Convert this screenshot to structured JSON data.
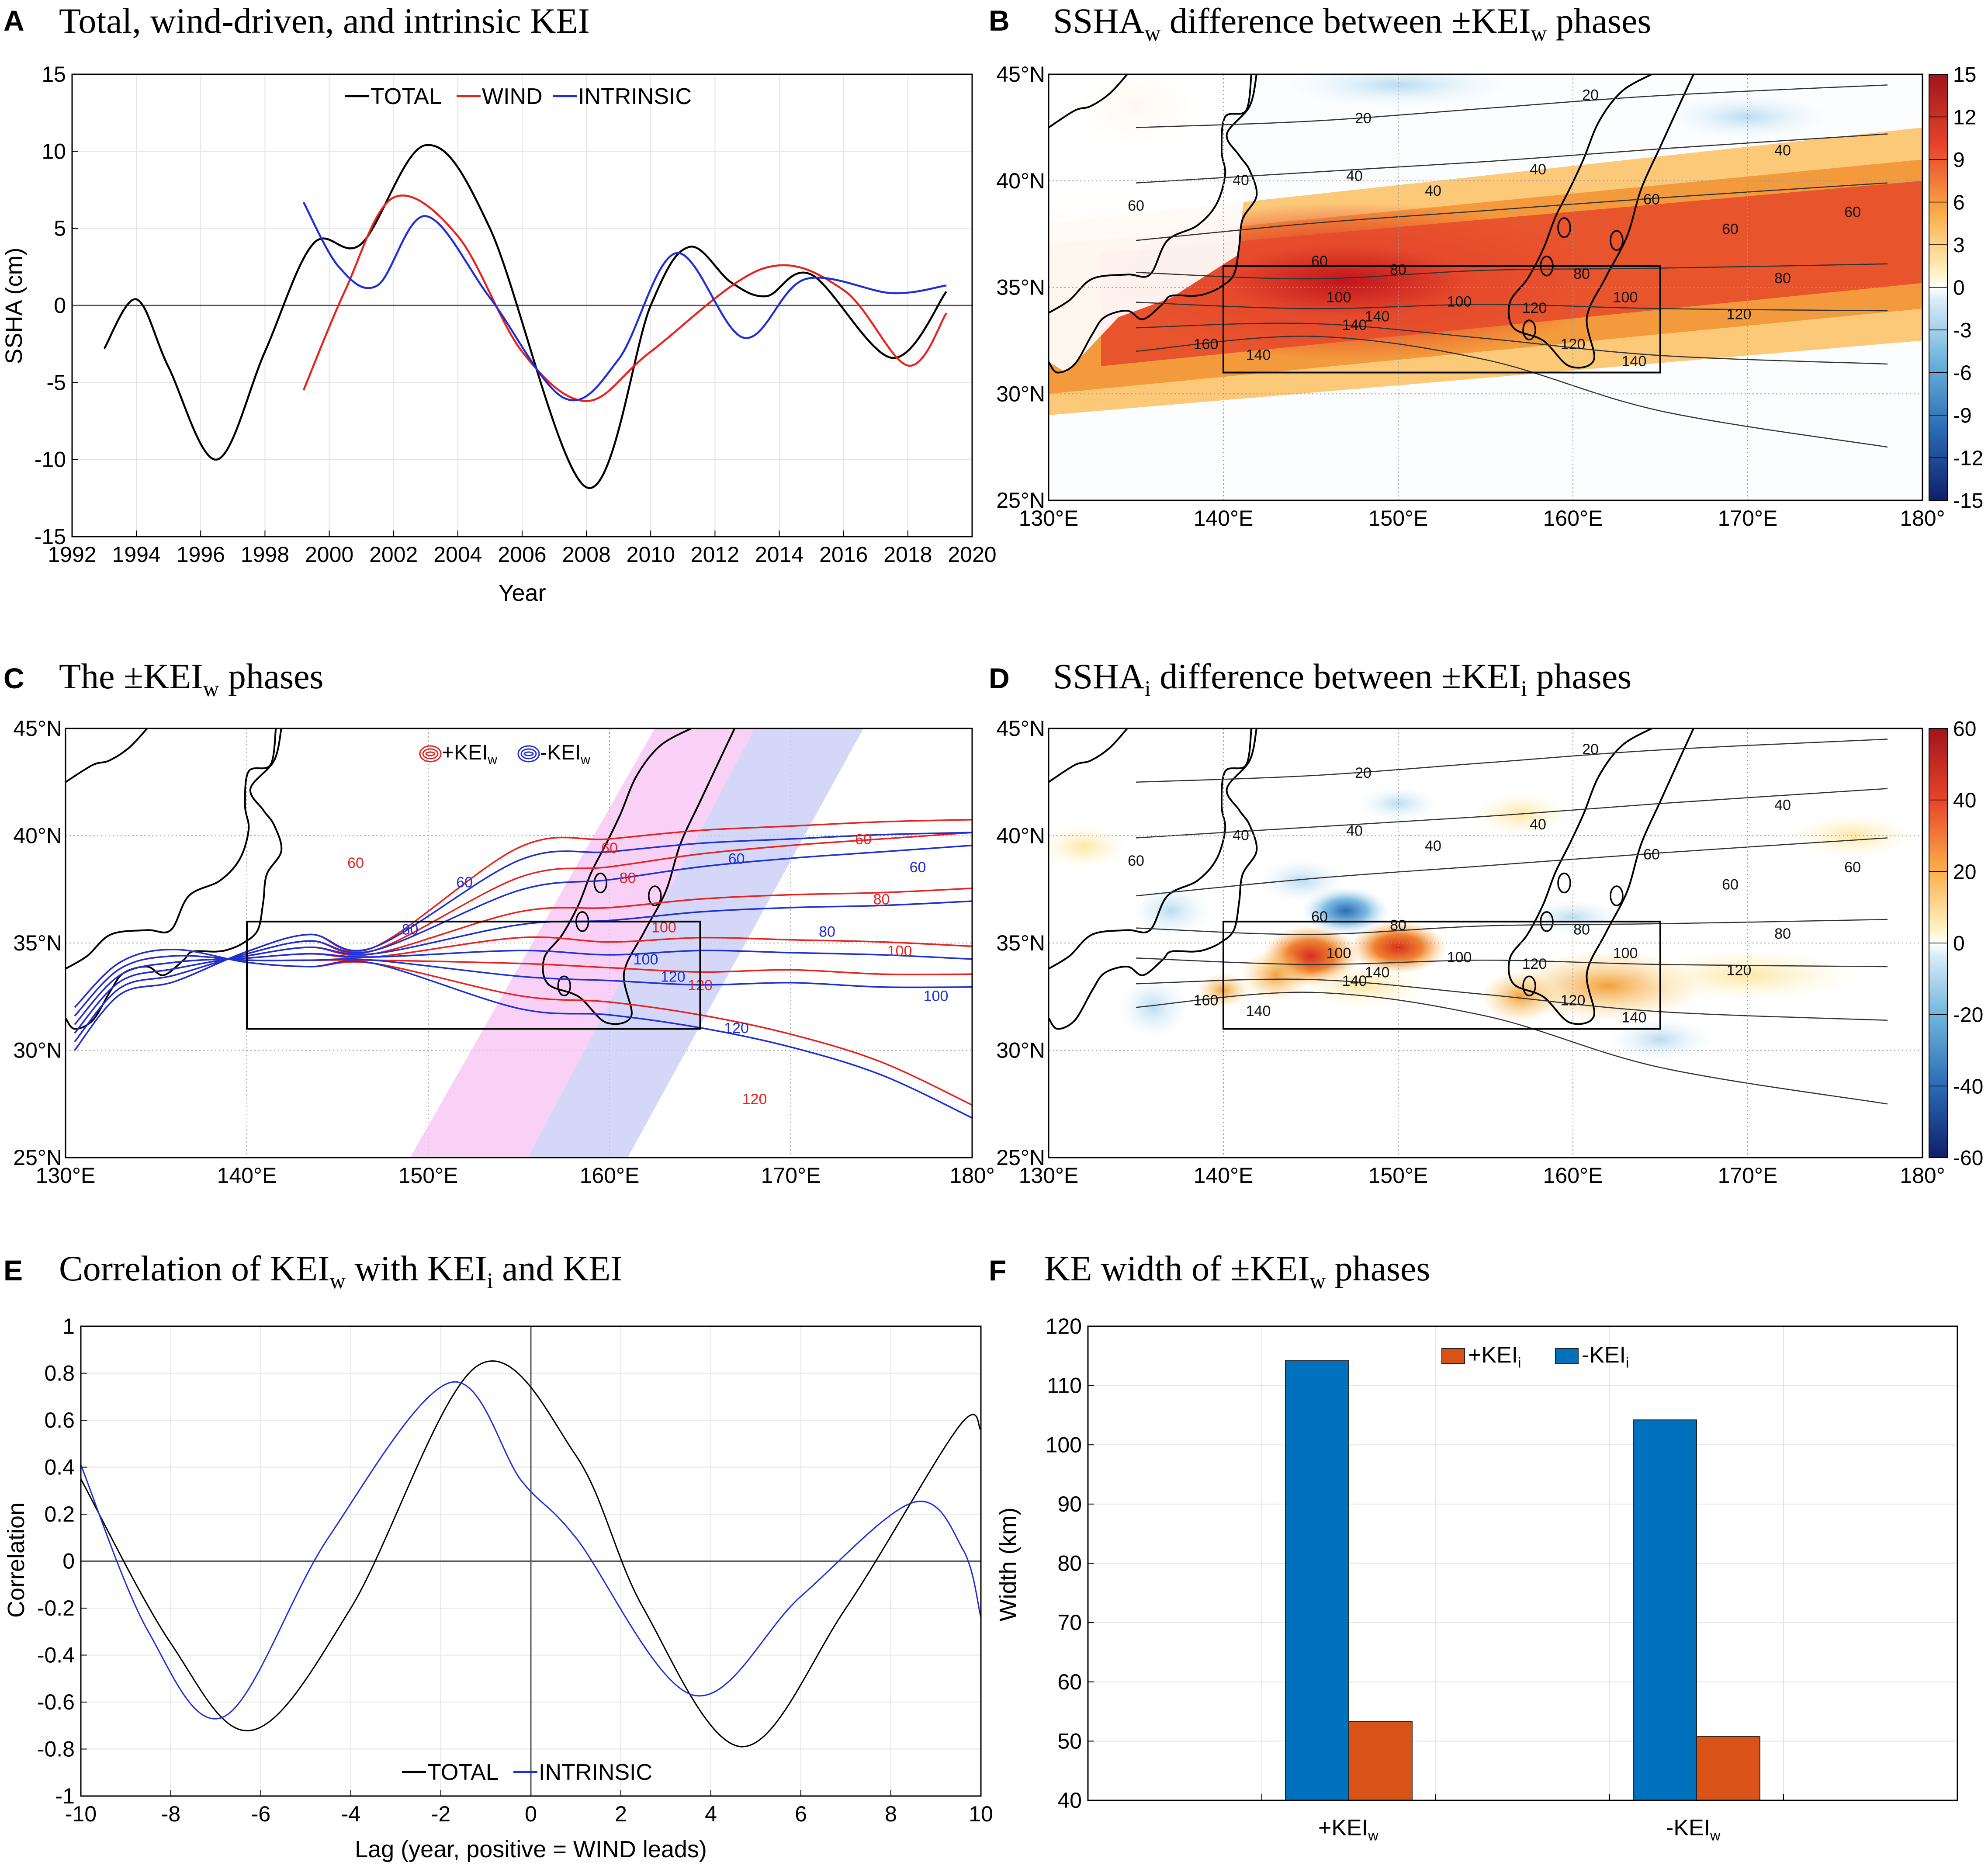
{
  "colors": {
    "total": "#000000",
    "wind": "#e8231f",
    "intrinsic": "#1f2fd6",
    "plus_bar": "#d95319",
    "minus_bar": "#0072bd",
    "plus_band": "#f7c6f4",
    "minus_band": "#c9cdf5"
  },
  "chart_data": [
    {
      "panel": "A",
      "type": "line",
      "title": "Total, wind-driven, and intrinsic KEI",
      "xlabel": "Year",
      "ylabel": "SSHA (cm)",
      "xlim": [
        1992,
        2020
      ],
      "ylim": [
        -15,
        15
      ],
      "xticks": [
        "1992",
        "1994",
        "1996",
        "1998",
        "2000",
        "2002",
        "2004",
        "2006",
        "2008",
        "2010",
        "2012",
        "2014",
        "2016",
        "2018",
        "2020"
      ],
      "yticks": [
        "-15",
        "-10",
        "-5",
        "0",
        "5",
        "10",
        "15"
      ],
      "legend": [
        "TOTAL",
        "WIND",
        "INTRINSIC"
      ],
      "series": [
        {
          "name": "TOTAL",
          "color_key": "total",
          "x": [
            1993,
            1994,
            1995,
            1996.5,
            1998,
            1999.5,
            2001,
            2003,
            2005,
            2008,
            2010,
            2011.2,
            2012.5,
            2013.6,
            2015,
            2017.5,
            2019.2
          ],
          "y": [
            -2.8,
            0.4,
            -4,
            -10,
            -3,
            4,
            4,
            10.4,
            5,
            -11.8,
            0,
            3.8,
            1.5,
            0.6,
            2,
            -3.4,
            0.9
          ]
        },
        {
          "name": "WIND",
          "color_key": "wind",
          "x": [
            1999.2,
            2000.5,
            2002,
            2004,
            2006,
            2008,
            2010,
            2013.5,
            2016,
            2018,
            2019.2
          ],
          "y": [
            -5.5,
            1,
            7,
            4.5,
            -3,
            -6.2,
            -3,
            2.4,
            1,
            -3.9,
            -0.5
          ]
        },
        {
          "name": "INTRINSIC",
          "color_key": "intrinsic",
          "x": [
            1999.2,
            2000.3,
            2001.5,
            2003,
            2005,
            2007.3,
            2009,
            2010.8,
            2012.9,
            2014.8,
            2017.5,
            2019.2
          ],
          "y": [
            6.7,
            2.5,
            1.3,
            5.8,
            0.5,
            -6,
            -3.5,
            3.4,
            -2.1,
            1.7,
            0.8,
            1.3
          ]
        }
      ]
    },
    {
      "panel": "B",
      "type": "heatmap",
      "title_main": "SSHA",
      "title_sub": "w",
      "title_mid": " difference between ±KEI",
      "title_sub2": "w",
      "title_end": " phases",
      "lon_ticks": [
        "130°E",
        "140°E",
        "150°E",
        "160°E",
        "170°E",
        "180°"
      ],
      "lat_ticks": [
        "45°N",
        "40°N",
        "35°N",
        "30°N",
        "25°N"
      ],
      "colorbar": [
        15,
        12,
        9,
        6,
        3,
        0,
        -3,
        -6,
        -9,
        -12,
        -15
      ],
      "box": {
        "lon": [
          140,
          165
        ],
        "lat": [
          31,
          36
        ]
      },
      "contour_labels": [
        "20",
        "20",
        "40",
        "40",
        "40",
        "40",
        "40",
        "60",
        "60",
        "60",
        "60",
        "60",
        "80",
        "80",
        "80",
        "100",
        "100",
        "100",
        "120",
        "120",
        "120",
        "140",
        "140",
        "140",
        "140",
        "160"
      ]
    },
    {
      "panel": "C",
      "type": "line",
      "title_main": "The ±KEI",
      "title_sub": "w",
      "title_end": " phases",
      "lon_ticks": [
        "130°E",
        "140°E",
        "150°E",
        "160°E",
        "170°E",
        "180°"
      ],
      "lat_ticks": [
        "45°N",
        "40°N",
        "35°N",
        "30°N",
        "25°N"
      ],
      "legend": [
        {
          "label": "+KEI",
          "sub": "w"
        },
        {
          "label": "-KEI",
          "sub": "w"
        }
      ],
      "box": {
        "lon": [
          140,
          165
        ],
        "lat": [
          31,
          36
        ]
      },
      "plus_contour_labels": [
        "60",
        "60",
        "60",
        "80",
        "80",
        "100",
        "100",
        "120",
        "120"
      ],
      "minus_contour_labels": [
        "60",
        "60",
        "60",
        "80",
        "80",
        "100",
        "100",
        "120",
        "120"
      ]
    },
    {
      "panel": "D",
      "type": "heatmap",
      "title_main": "SSHA",
      "title_sub": "i",
      "title_mid": " difference between ±KEI",
      "title_sub2": "i",
      "title_end": " phases",
      "lon_ticks": [
        "130°E",
        "140°E",
        "150°E",
        "160°E",
        "170°E",
        "180°"
      ],
      "lat_ticks": [
        "45°N",
        "40°N",
        "35°N",
        "30°N",
        "25°N"
      ],
      "colorbar": [
        60,
        40,
        20,
        0,
        -20,
        -40,
        -60
      ],
      "box": {
        "lon": [
          140,
          165
        ],
        "lat": [
          31,
          36
        ]
      },
      "contour_labels": [
        "20",
        "20",
        "40",
        "40",
        "40",
        "40",
        "40",
        "60",
        "60",
        "60",
        "60",
        "60",
        "80",
        "80",
        "80",
        "100",
        "100",
        "100",
        "120",
        "120",
        "120",
        "140",
        "140",
        "140",
        "140",
        "160"
      ]
    },
    {
      "panel": "E",
      "type": "line",
      "title_main": "Correlation of KEI",
      "title_sub": "w",
      "title_mid": " with KEI",
      "title_sub2": "i",
      "title_end": " and KEI",
      "xlabel": "Lag (year, positive = WIND leads)",
      "ylabel": "Correlation",
      "xlim": [
        -10,
        10
      ],
      "ylim": [
        -1,
        1
      ],
      "xticks": [
        "-10",
        "-8",
        "-6",
        "-4",
        "-2",
        "0",
        "2",
        "4",
        "6",
        "8",
        "10"
      ],
      "yticks": [
        "-1",
        "-0.8",
        "-0.6",
        "-0.4",
        "-0.2",
        "0",
        "0.2",
        "0.4",
        "0.6",
        "0.8",
        "1"
      ],
      "legend": [
        "TOTAL",
        "INTRINSIC"
      ],
      "series": [
        {
          "name": "TOTAL",
          "color_key": "total",
          "x": [
            -10,
            -8,
            -6.2,
            -4,
            -1.2,
            1,
            2.5,
            4.7,
            7,
            9.5,
            10
          ],
          "y": [
            0.35,
            -0.35,
            -0.72,
            -0.2,
            0.83,
            0.45,
            -0.2,
            -0.79,
            -0.2,
            0.57,
            0.56
          ]
        },
        {
          "name": "INTRINSIC",
          "color_key": "intrinsic",
          "x": [
            -10,
            -8.5,
            -6.8,
            -4.5,
            -1.8,
            -0.2,
            1,
            3.6,
            6,
            8.5,
            9.6,
            10
          ],
          "y": [
            0.41,
            -0.3,
            -0.66,
            0.1,
            0.76,
            0.34,
            0.1,
            -0.57,
            -0.15,
            0.25,
            0.05,
            -0.24
          ]
        }
      ]
    },
    {
      "panel": "F",
      "type": "bar",
      "title_main": "KE width of ±KEI",
      "title_sub": "w",
      "title_end": " phases",
      "ylabel": "Width (km)",
      "ylim": [
        40,
        120
      ],
      "yticks": [
        "40",
        "50",
        "60",
        "70",
        "80",
        "90",
        "100",
        "110",
        "120"
      ],
      "categories": [
        {
          "label": "+KEI",
          "sub": "w"
        },
        {
          "label": "-KEI",
          "sub": "w"
        }
      ],
      "series": [
        {
          "name": "-KEI",
          "sub": "i",
          "color_key": "minus_bar",
          "values": [
            114.2,
            104.2
          ]
        },
        {
          "name": "+KEI",
          "sub": "i",
          "color_key": "plus_bar",
          "values": [
            53.3,
            50.8
          ]
        }
      ],
      "legend": [
        {
          "label": "+KEI",
          "sub": "i"
        },
        {
          "label": "-KEI",
          "sub": "i"
        }
      ]
    }
  ],
  "panel_letters": [
    "A",
    "B",
    "C",
    "D",
    "E",
    "F"
  ]
}
